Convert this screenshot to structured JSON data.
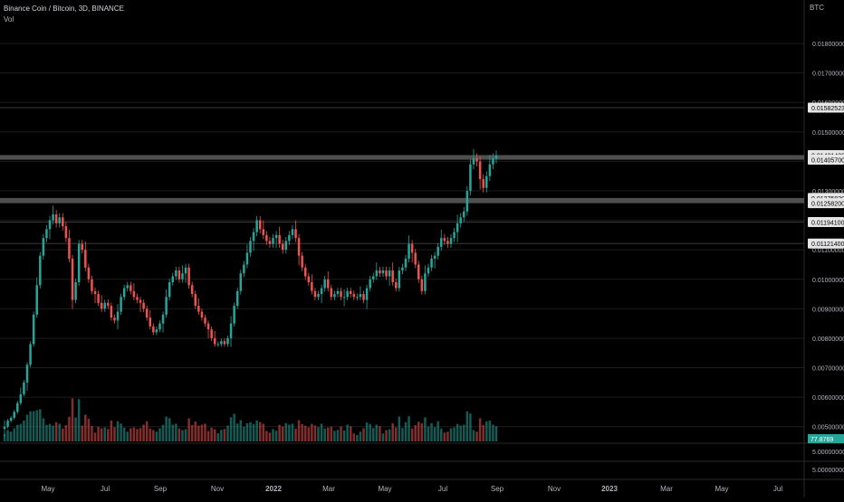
{
  "header": {
    "symbol_line": "Binance Coin / Bitcoin, 3D, BINANCE",
    "volume_label": "Vol"
  },
  "currency_label": "BTC",
  "colors": {
    "background": "#000000",
    "up": "#26a69a",
    "down": "#ef5350",
    "zone": "#5d5d5d",
    "axis_text": "#b2b5be",
    "grid": "#1c1c1c"
  },
  "chart_data": {
    "type": "candlestick",
    "x_ticks": [
      "May",
      "Jul",
      "Sep",
      "Nov",
      "2022",
      "Mar",
      "May",
      "Jul",
      "Sep",
      "Nov",
      "2023",
      "Mar",
      "May",
      "Jul"
    ],
    "y_ticks": [
      "0.01800000",
      "0.01700000",
      "0.01600000",
      "0.01500000",
      "0.01400000",
      "0.01300000",
      "0.01200000",
      "0.01100000",
      "0.01000000",
      "0.00900000",
      "0.00800000",
      "0.00700000",
      "0.00600000",
      "0.00500000"
    ],
    "ylim": [
      0.0045,
      0.0188
    ],
    "zones": [
      {
        "low": 0.014057,
        "high": 0.014214
      },
      {
        "low": 0.012582,
        "high": 0.012758
      }
    ],
    "level_lines": [
      0.015825,
      0.011941,
      0.011214
    ],
    "price_labels": [
      "0.01582523",
      "0.01421400",
      "0.01405700",
      "0.01275820",
      "0.01258200",
      "0.01194100",
      "0.01121400"
    ],
    "volume_label": "77.8769",
    "lower_pane_labels": [
      "5.00000000",
      "5.00000000"
    ],
    "series": [
      {
        "name": "price",
        "close": [
          0.005,
          0.0052,
          0.0053,
          0.0055,
          0.0058,
          0.0061,
          0.0065,
          0.0071,
          0.0078,
          0.0088,
          0.0098,
          0.0108,
          0.0114,
          0.0117,
          0.012,
          0.0122,
          0.0119,
          0.0121,
          0.0118,
          0.0114,
          0.0107,
          0.0093,
          0.0099,
          0.0112,
          0.011,
          0.0104,
          0.01,
          0.0096,
          0.0095,
          0.0092,
          0.009,
          0.0092,
          0.0091,
          0.0087,
          0.0086,
          0.0089,
          0.0094,
          0.0097,
          0.0098,
          0.0096,
          0.0094,
          0.0093,
          0.0092,
          0.009,
          0.0087,
          0.0084,
          0.0082,
          0.0083,
          0.0085,
          0.0088,
          0.0094,
          0.0099,
          0.0101,
          0.0103,
          0.01,
          0.0102,
          0.0104,
          0.0098,
          0.0095,
          0.0091,
          0.0089,
          0.0087,
          0.0085,
          0.0083,
          0.008,
          0.0078,
          0.0078,
          0.0079,
          0.0078,
          0.008,
          0.0085,
          0.0091,
          0.0096,
          0.0102,
          0.0105,
          0.0109,
          0.0113,
          0.0116,
          0.012,
          0.0117,
          0.0115,
          0.0113,
          0.0112,
          0.0114,
          0.0115,
          0.0112,
          0.011,
          0.0113,
          0.0115,
          0.0117,
          0.0114,
          0.0108,
          0.0104,
          0.0101,
          0.0099,
          0.0096,
          0.0094,
          0.0095,
          0.0097,
          0.01,
          0.0097,
          0.0094,
          0.0095,
          0.0096,
          0.0094,
          0.0094,
          0.0096,
          0.0095,
          0.0094,
          0.0094,
          0.0095,
          0.0093,
          0.0097,
          0.01,
          0.0101,
          0.0103,
          0.0102,
          0.0103,
          0.0101,
          0.0103,
          0.0099,
          0.0097,
          0.0103,
          0.0104,
          0.0107,
          0.0112,
          0.0109,
          0.0105,
          0.01,
          0.0096,
          0.0102,
          0.0104,
          0.0107,
          0.0108,
          0.0111,
          0.0114,
          0.0113,
          0.0112,
          0.0114,
          0.0116,
          0.0119,
          0.0121,
          0.0123,
          0.013,
          0.0139,
          0.0141,
          0.014,
          0.0134,
          0.0131,
          0.0135,
          0.0139,
          0.0141,
          0.0142
        ]
      }
    ]
  }
}
